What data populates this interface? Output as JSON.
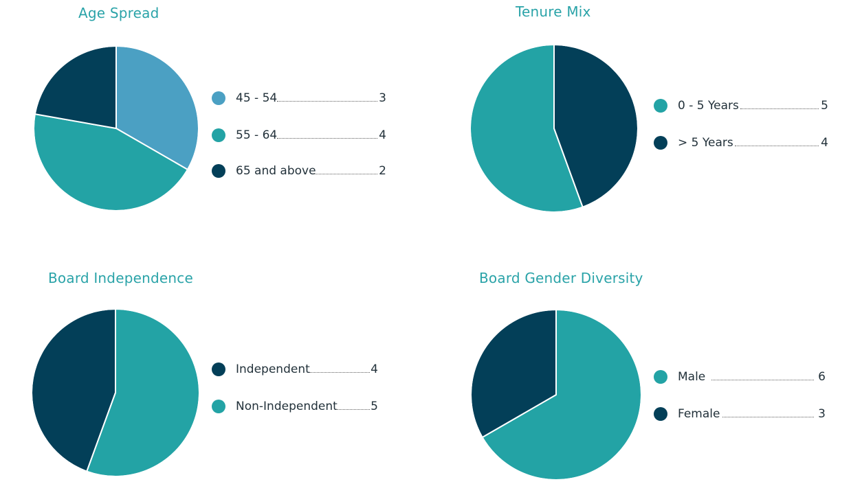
{
  "colors": {
    "light_blue": "#4ba0c3",
    "teal": "#23a3a5",
    "navy": "#033f58",
    "title": "#2aa3a8"
  },
  "chart_data": [
    {
      "type": "pie",
      "title": "Age Spread",
      "slices": [
        {
          "label": "45 - 54",
          "value": 3,
          "color": "#4ba0c3"
        },
        {
          "label": "55 - 64",
          "value": 4,
          "color": "#23a3a5"
        },
        {
          "label": "65 and above",
          "value": 2,
          "color": "#033f58"
        }
      ]
    },
    {
      "type": "pie",
      "title": "Tenure Mix",
      "slices": [
        {
          "label": "0 - 5 Years",
          "value": 5,
          "color": "#23a3a5"
        },
        {
          "label": "> 5 Years",
          "value": 4,
          "color": "#033f58"
        }
      ]
    },
    {
      "type": "pie",
      "title": "Board Independence",
      "slices": [
        {
          "label": "Independent",
          "value": 4,
          "color": "#033f58"
        },
        {
          "label": "Non-Independent",
          "value": 5,
          "color": "#23a3a5"
        }
      ]
    },
    {
      "type": "pie",
      "title": "Board Gender Diversity",
      "slices": [
        {
          "label": "Male",
          "value": 6,
          "color": "#23a3a5"
        },
        {
          "label": "Female",
          "value": 3,
          "color": "#033f58"
        }
      ]
    }
  ]
}
